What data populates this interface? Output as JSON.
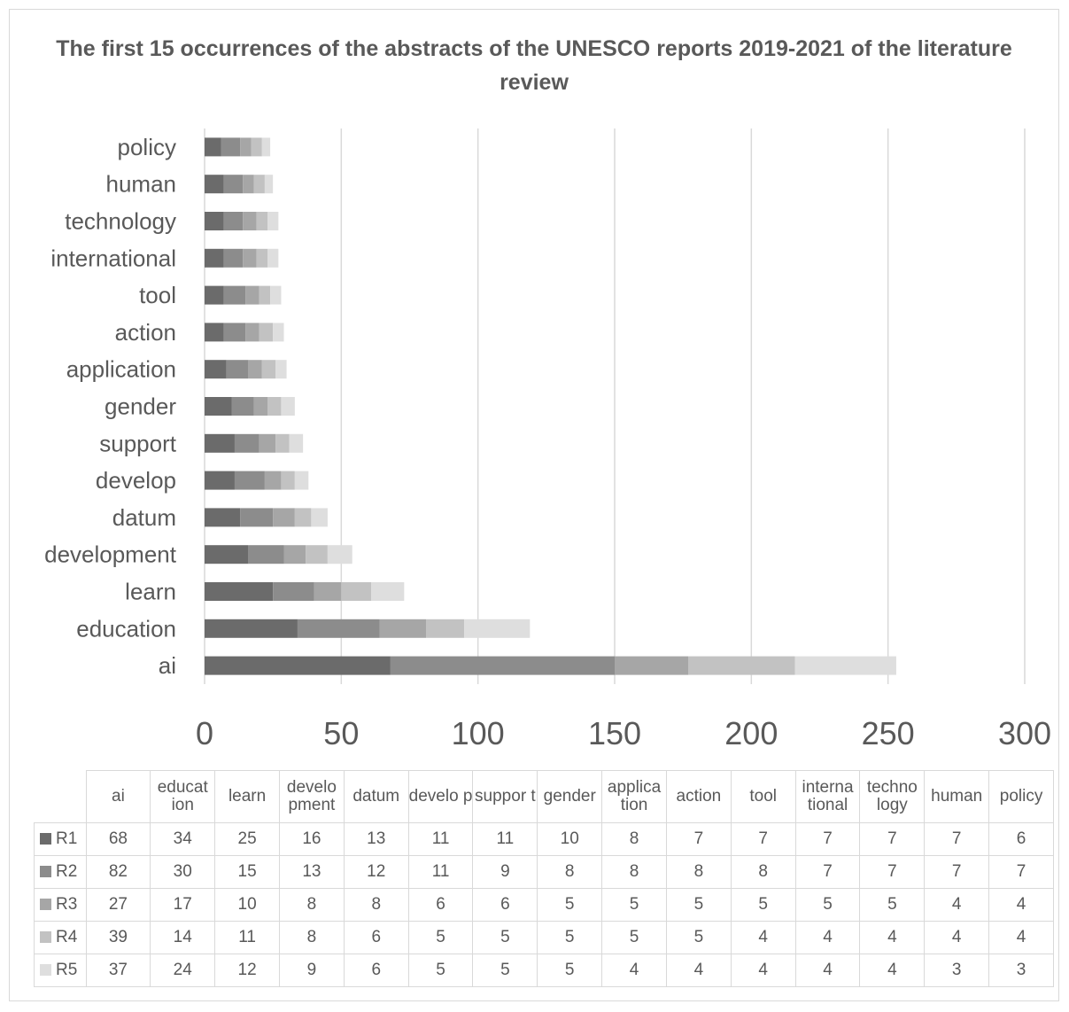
{
  "title": "The first 15 occurrences of the abstracts of the UNESCO reports 2019-2021 of the literature review",
  "chart_data": {
    "type": "bar",
    "orientation": "horizontal",
    "stacked": true,
    "title": "The first 15 occurrences of the abstracts of the UNESCO reports 2019-2021 of the literature review",
    "categories": [
      "ai",
      "education",
      "learn",
      "development",
      "datum",
      "develop",
      "support",
      "gender",
      "application",
      "action",
      "tool",
      "international",
      "technology",
      "human",
      "policy"
    ],
    "table_headers": [
      "ai",
      "educat ion",
      "learn",
      "develo pment",
      "datum",
      "develo p",
      "suppor t",
      "gender",
      "applica tion",
      "action",
      "tool",
      "interna tional",
      "techno logy",
      "human",
      "policy"
    ],
    "series": [
      {
        "name": "R1",
        "color": "#6b6b6b",
        "values": [
          68,
          34,
          25,
          16,
          13,
          11,
          11,
          10,
          8,
          7,
          7,
          7,
          7,
          7,
          6
        ]
      },
      {
        "name": "R2",
        "color": "#8c8c8c",
        "values": [
          82,
          30,
          15,
          13,
          12,
          11,
          9,
          8,
          8,
          8,
          8,
          7,
          7,
          7,
          7
        ]
      },
      {
        "name": "R3",
        "color": "#a6a6a6",
        "values": [
          27,
          17,
          10,
          8,
          8,
          6,
          6,
          5,
          5,
          5,
          5,
          5,
          5,
          4,
          4
        ]
      },
      {
        "name": "R4",
        "color": "#c2c2c2",
        "values": [
          39,
          14,
          11,
          8,
          6,
          5,
          5,
          5,
          5,
          5,
          4,
          4,
          4,
          4,
          4
        ]
      },
      {
        "name": "R5",
        "color": "#dedede",
        "values": [
          37,
          24,
          12,
          9,
          6,
          5,
          5,
          5,
          4,
          4,
          4,
          4,
          4,
          3,
          3
        ]
      }
    ],
    "xlim": [
      0,
      300
    ],
    "xticks": [
      0,
      50,
      100,
      150,
      200,
      250,
      300
    ],
    "grid": true,
    "legend": "data table below chart"
  }
}
